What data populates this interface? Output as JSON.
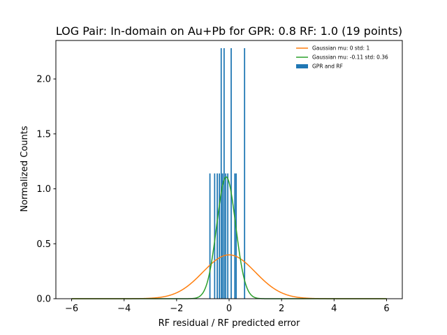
{
  "chart_data": {
    "type": "bar",
    "title": "LOG Pair: In-domain on Au+Pb for GPR: 0.8 RF: 1.0 (19 points)",
    "xlabel": "RF residual / RF predicted error",
    "ylabel": "Normalized Counts",
    "xlim": [
      -6.6,
      6.6
    ],
    "ylim": [
      0,
      2.35
    ],
    "xticks": [
      -6,
      -4,
      -2,
      0,
      2,
      4,
      6
    ],
    "xtick_labels": [
      "−6",
      "−4",
      "−2",
      "0",
      "2",
      "4",
      "6"
    ],
    "yticks": [
      0.0,
      0.5,
      1.0,
      1.5,
      2.0
    ],
    "ytick_labels": [
      "0.0",
      "0.5",
      "1.0",
      "1.5",
      "2.0"
    ],
    "grid": false,
    "legend_position": "top-right",
    "histogram": {
      "name": "GPR and RF",
      "color": "#1f77b4",
      "bin_width": 0.047,
      "bins": [
        {
          "x": -0.73,
          "height": 1.14
        },
        {
          "x": -0.55,
          "height": 1.14
        },
        {
          "x": -0.45,
          "height": 1.14
        },
        {
          "x": -0.37,
          "height": 1.14
        },
        {
          "x": -0.3,
          "height": 2.28
        },
        {
          "x": -0.25,
          "height": 1.14
        },
        {
          "x": -0.19,
          "height": 2.28
        },
        {
          "x": -0.13,
          "height": 1.14
        },
        {
          "x": -0.05,
          "height": 1.14
        },
        {
          "x": 0.08,
          "height": 2.28
        },
        {
          "x": 0.22,
          "height": 1.14
        },
        {
          "x": 0.27,
          "height": 1.14
        },
        {
          "x": 0.59,
          "height": 2.28
        }
      ]
    },
    "curves": [
      {
        "name": "Gaussian mu: 0 std: 1",
        "mu": 0,
        "std": 1,
        "color": "#ff7f0e"
      },
      {
        "name": "Gaussian mu: -0.11 std: 0.36",
        "mu": -0.11,
        "std": 0.36,
        "color": "#2ca02c"
      }
    ],
    "curve_x_range": [
      -6,
      6
    ]
  }
}
